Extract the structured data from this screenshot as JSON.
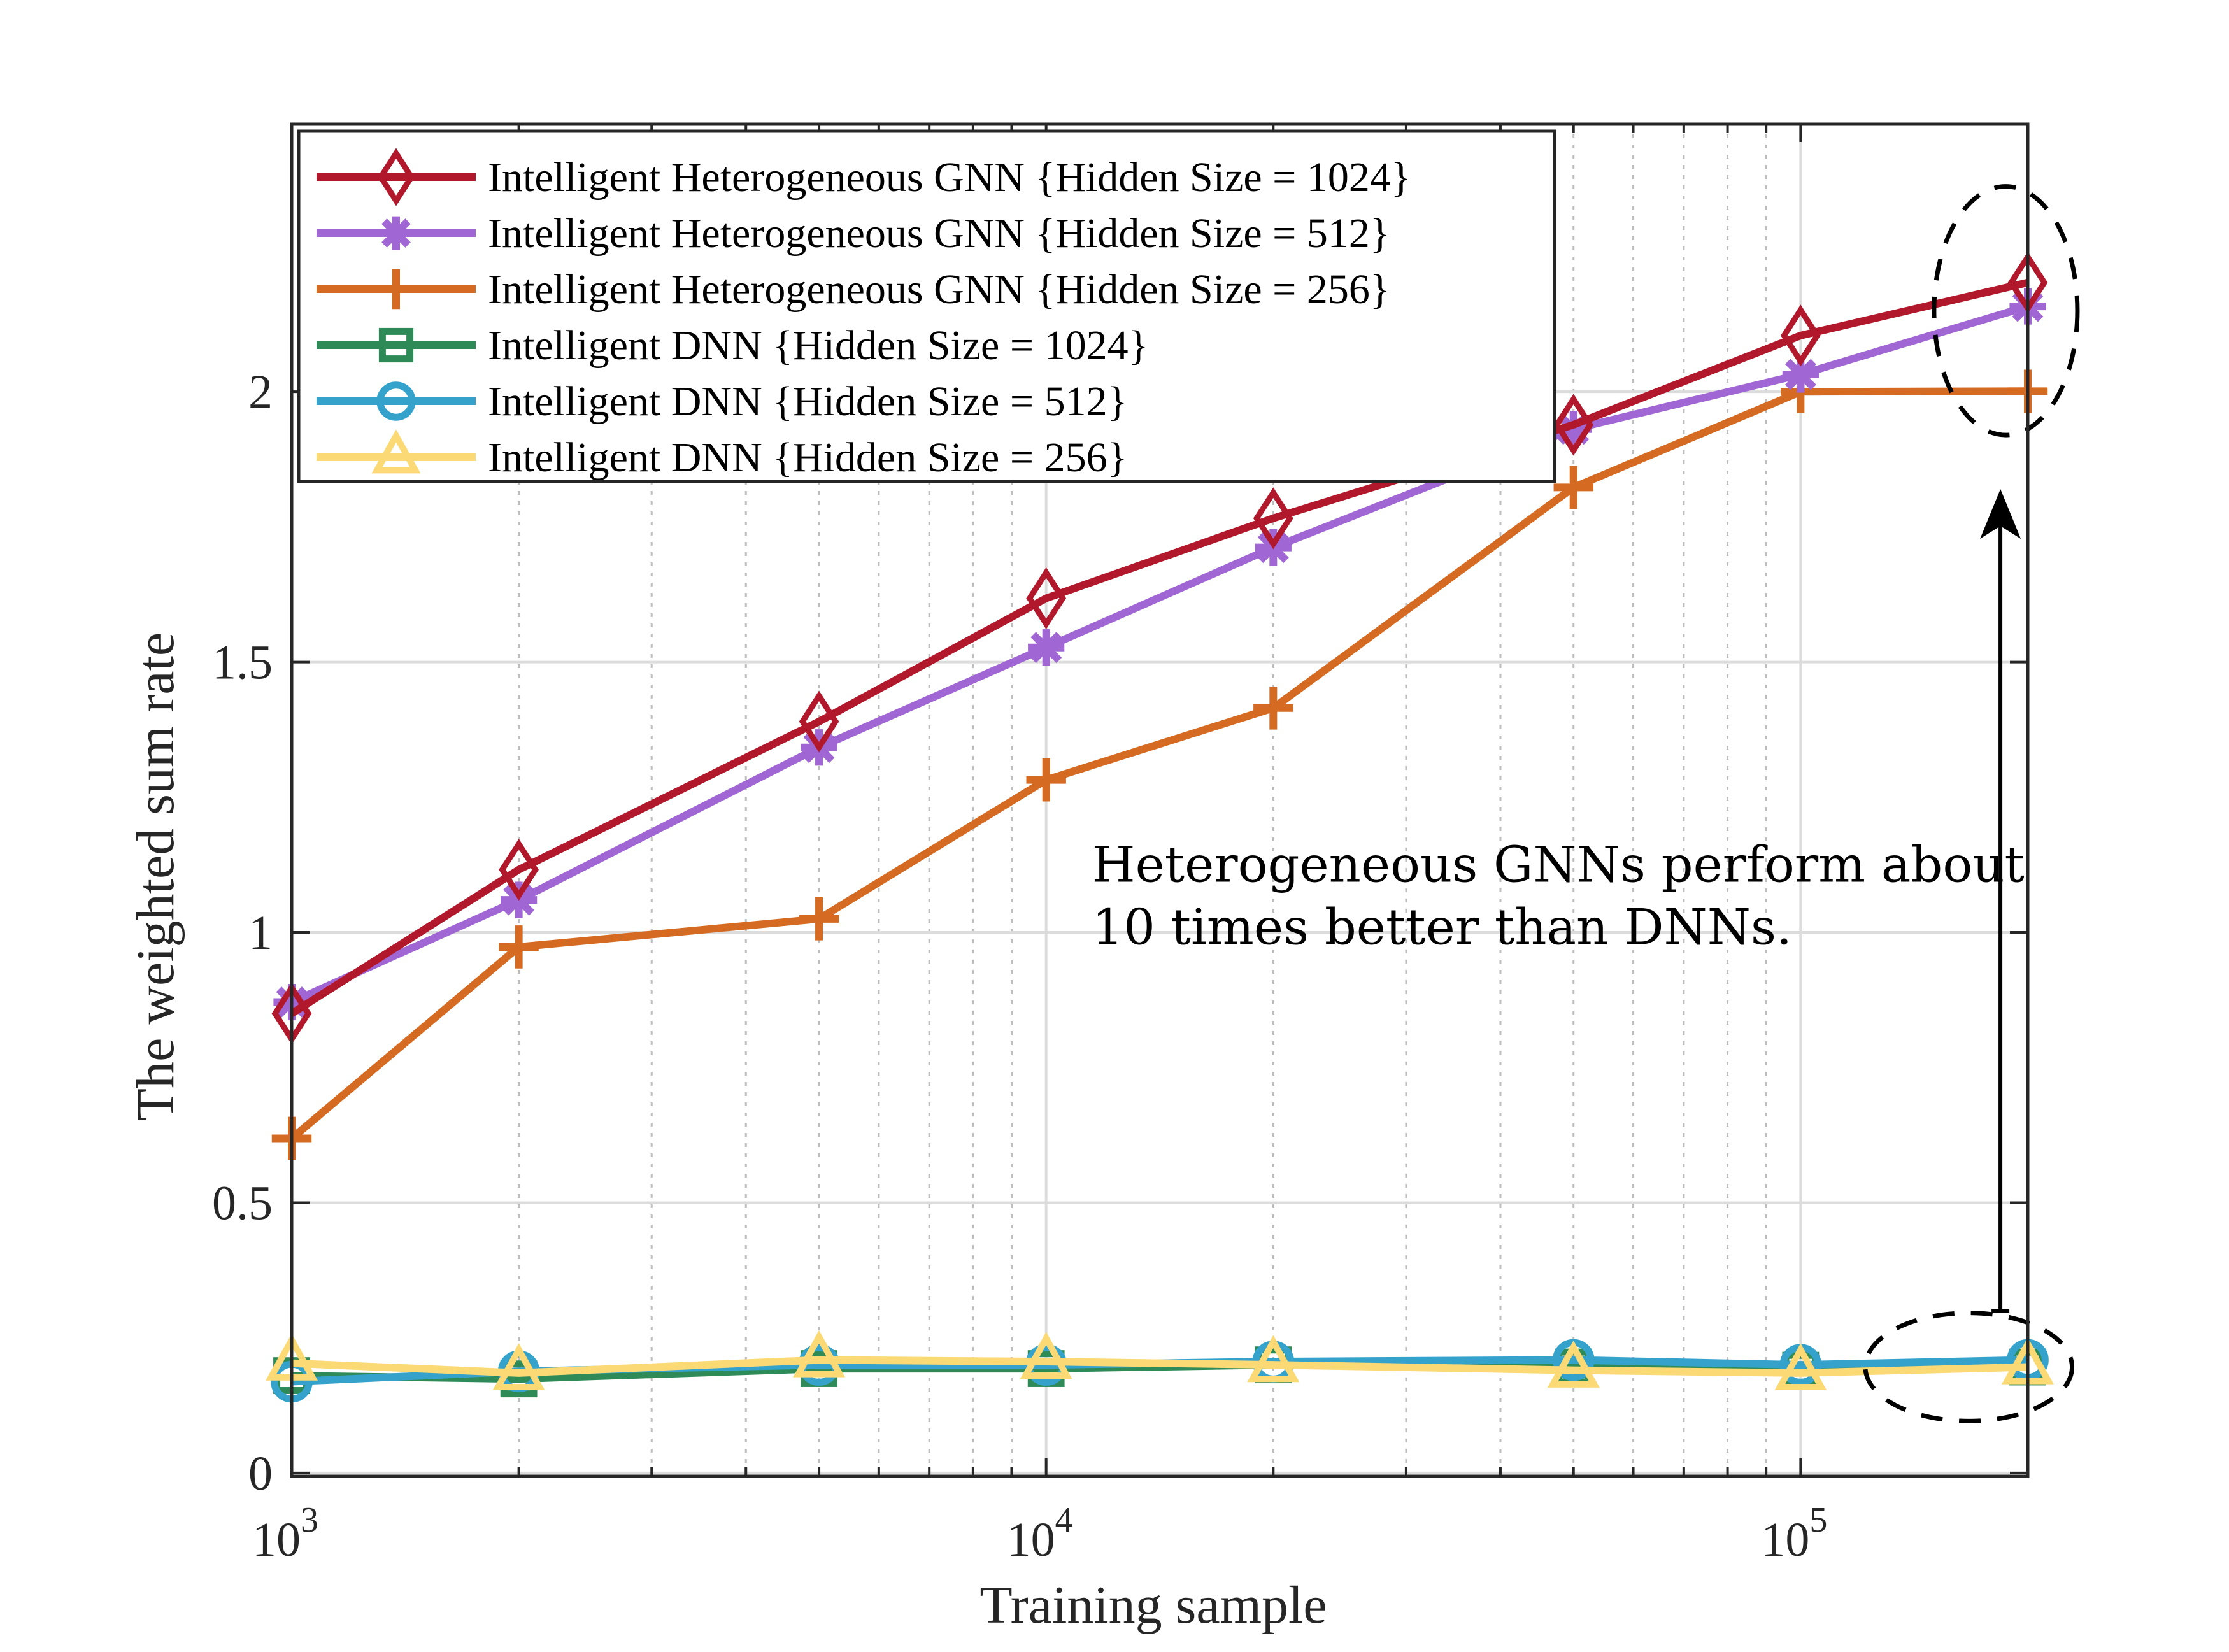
{
  "chart_data": {
    "type": "line",
    "title": "",
    "xlabel": "Training sample",
    "ylabel": "The weighted sum rate",
    "xscale": "log",
    "xlim": [
      1000,
      200000
    ],
    "ylim": [
      -0.006,
      2.495
    ],
    "grid": true,
    "x": [
      1000,
      2000,
      5000,
      10000,
      20000,
      50000,
      100000,
      200000
    ],
    "x_ticks": [
      {
        "value": 1000,
        "base": "10",
        "exp": "3"
      },
      {
        "value": 10000,
        "base": "10",
        "exp": "4"
      },
      {
        "value": 100000,
        "base": "10",
        "exp": "5"
      }
    ],
    "y_ticks": [
      {
        "value": 0,
        "label": "0"
      },
      {
        "value": 0.5,
        "label": "0.5"
      },
      {
        "value": 1,
        "label": "1"
      },
      {
        "value": 1.5,
        "label": "1.5"
      },
      {
        "value": 2,
        "label": "2"
      }
    ],
    "legend_position": "top-left",
    "series": [
      {
        "name": "Intelligent Heterogeneous GNN {Hidden Size = 1024}",
        "color": "#B2182B",
        "marker": "diamond",
        "values": [
          0.85,
          1.116,
          1.39,
          1.618,
          1.766,
          1.939,
          2.104,
          2.202
        ]
      },
      {
        "name": "Intelligent Heterogeneous GNN {Hidden Size = 512}",
        "color": "#A066D3",
        "marker": "asterisk",
        "values": [
          0.871,
          1.06,
          1.342,
          1.527,
          1.712,
          1.931,
          2.032,
          2.158
        ]
      },
      {
        "name": "Intelligent Heterogeneous GNN {Hidden Size = 256}",
        "color": "#D56B22",
        "marker": "plus",
        "values": [
          0.619,
          0.973,
          1.025,
          1.282,
          1.415,
          1.823,
          2.0,
          2.001
        ]
      },
      {
        "name": "Intelligent DNN {Hidden Size = 1024}",
        "color": "#2E8B57",
        "marker": "square",
        "values": [
          0.18,
          0.174,
          0.193,
          0.193,
          0.2,
          0.196,
          0.19,
          0.196
        ]
      },
      {
        "name": "Intelligent DNN {Hidden Size = 512}",
        "color": "#35A2CC",
        "marker": "circle",
        "values": [
          0.169,
          0.188,
          0.2,
          0.2,
          0.206,
          0.209,
          0.2,
          0.209
        ]
      },
      {
        "name": "Intelligent DNN {Hidden Size = 256}",
        "color": "#FBD975",
        "marker": "triangle",
        "values": [
          0.203,
          0.185,
          0.209,
          0.206,
          0.2,
          0.19,
          0.185,
          0.196
        ]
      }
    ],
    "annotations": {
      "text_lines": [
        "Heterogeneous GNNs perform about",
        "10 times better than DNNs."
      ],
      "text_anchor": {
        "x": 11500,
        "y": 1.07
      },
      "arrow": {
        "x": 184000,
        "y_from": 0.3,
        "y_to": 1.82
      },
      "ellipses": [
        {
          "name": "gnn-highlight",
          "cx": 187000,
          "cy": 2.15,
          "rx_decades": 0.095,
          "ry": 0.23
        },
        {
          "name": "dnn-highlight",
          "cx": 167000,
          "cy": 0.196,
          "rx_decades": 0.137,
          "ry": 0.1
        }
      ]
    }
  }
}
